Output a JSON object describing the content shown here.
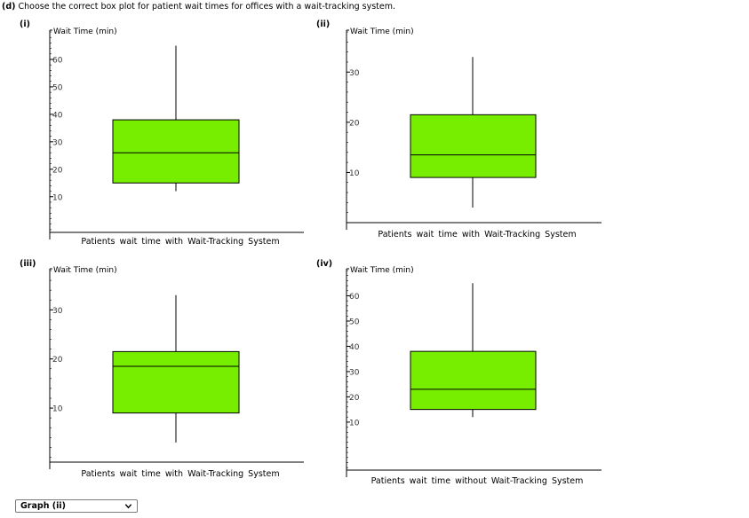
{
  "question": {
    "tag": "(d)",
    "text": "Choose the correct box plot for patient wait times for offices with a wait-tracking system."
  },
  "answer_select": {
    "selected": "Graph (ii)",
    "icon": "chevron-down-icon"
  },
  "colors": {
    "box_fill": "#77ee00",
    "box_stroke": "#000000",
    "axis": "#000000",
    "tick_text": "#333333"
  },
  "chart_data": [
    {
      "panel": "(i)",
      "type": "boxplot",
      "orientation": "vertical",
      "ylabel": "Wait Time (min)",
      "xlabel": "Patients wait time with Wait-Tracking System",
      "yticks": [
        10,
        20,
        30,
        40,
        50,
        60
      ],
      "ylim": [
        -3,
        70
      ],
      "box": {
        "min": 12,
        "q1": 15,
        "median": 26,
        "q3": 38,
        "max": 65
      }
    },
    {
      "panel": "(ii)",
      "type": "boxplot",
      "orientation": "vertical",
      "ylabel": "Wait Time (min)",
      "xlabel": "Patients wait time with Wait-Tracking System",
      "yticks": [
        10,
        20,
        30
      ],
      "ylim": [
        0,
        38
      ],
      "box": {
        "min": 3,
        "q1": 9,
        "median": 13.5,
        "q3": 21.5,
        "max": 33
      }
    },
    {
      "panel": "(iii)",
      "type": "boxplot",
      "orientation": "vertical",
      "ylabel": "Wait Time (min)",
      "xlabel": "Patients wait time with Wait-Tracking System",
      "yticks": [
        10,
        20,
        30
      ],
      "ylim": [
        -1,
        38
      ],
      "box": {
        "min": 3,
        "q1": 9,
        "median": 18.5,
        "q3": 21.5,
        "max": 33
      }
    },
    {
      "panel": "(iv)",
      "type": "boxplot",
      "orientation": "vertical",
      "ylabel": "Wait Time (min)",
      "xlabel": "Patients wait time without Wait-Tracking System",
      "yticks": [
        10,
        20,
        30,
        40,
        50,
        60
      ],
      "ylim": [
        -9,
        70
      ],
      "box": {
        "min": 12,
        "q1": 15,
        "median": 23,
        "q3": 38,
        "max": 65
      }
    }
  ]
}
